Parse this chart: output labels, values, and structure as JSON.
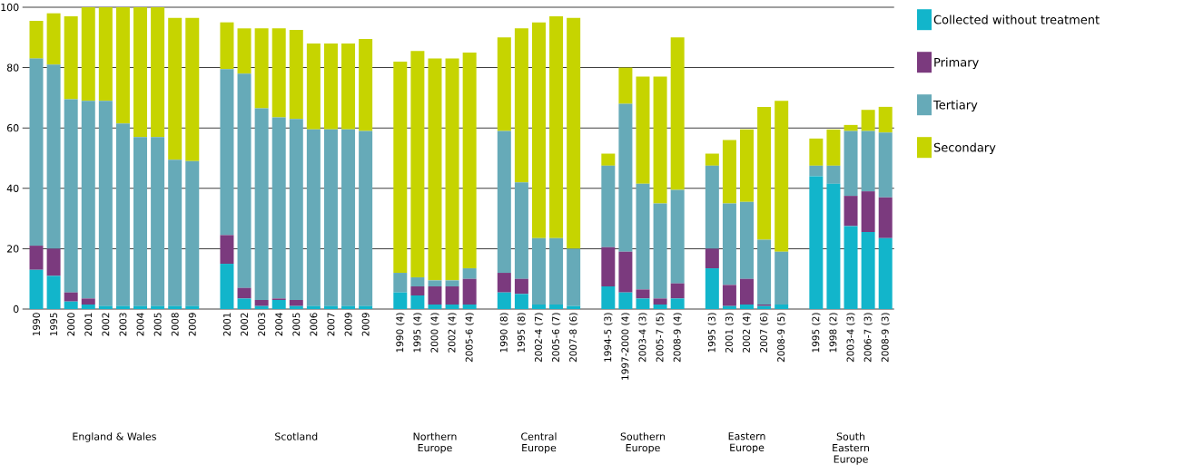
{
  "chart_data": {
    "type": "bar",
    "stacked": true,
    "categories": [
      "1990",
      "1995",
      "2000",
      "2001",
      "2002",
      "2003",
      "2004",
      "2005",
      "2008",
      "2009",
      null,
      "2001",
      "2002",
      "2003",
      "2004",
      "2005",
      "2006",
      "2007",
      "2009",
      "2009",
      null,
      "1990 (4)",
      "1995 (4)",
      "2000 (4)",
      "2002 (4)",
      "2005-6 (4)",
      null,
      "1990 (8)",
      "1995 (8)",
      "2002-4 (7)",
      "2005-6 (7)",
      "2007-8 (6)",
      null,
      "1994-5 (3)",
      "1997-2000 (4)",
      "2003-4 (3)",
      "2005-7 (5)",
      "2008-9 (4)",
      null,
      "1995 (3)",
      "2001 (3)",
      "2002 (4)",
      "2007 (6)",
      "2008-9 (5)",
      null,
      "1995 (2)",
      "1998 (2)",
      "2003-4 (3)",
      "2006-7 (3)",
      "2008-9 (3)"
    ],
    "series": [
      {
        "name": "Collected without treatment",
        "color": "#12b5cb",
        "values": [
          13,
          11,
          2.5,
          1.5,
          1,
          1,
          1,
          1,
          1,
          1,
          null,
          15,
          3.5,
          1,
          3,
          1,
          1,
          1,
          1,
          1,
          null,
          5.5,
          4.5,
          1.5,
          1.5,
          1.5,
          null,
          5.5,
          5,
          1.5,
          1.5,
          1,
          null,
          7.5,
          5.5,
          3.5,
          1.5,
          3.5,
          null,
          13.5,
          1,
          1.5,
          1,
          1.5,
          null,
          44,
          41.5,
          27.5,
          25.5,
          23.5
        ]
      },
      {
        "name": "Primary",
        "color": "#7b3a7e",
        "values": [
          8,
          9,
          3,
          2,
          null,
          null,
          null,
          null,
          null,
          null,
          null,
          9.5,
          3.5,
          2,
          0.5,
          2,
          null,
          null,
          null,
          null,
          null,
          null,
          3,
          6,
          6,
          8.5,
          null,
          6.5,
          5,
          null,
          null,
          null,
          null,
          13,
          13.5,
          3,
          2,
          5,
          null,
          6.5,
          7,
          8.5,
          0.5,
          null,
          null,
          null,
          null,
          10,
          13.5,
          13.5
        ]
      },
      {
        "name": "Tertiary",
        "color": "#66aab8",
        "values": [
          62,
          61,
          64,
          65.5,
          68,
          60.5,
          56,
          56,
          48.5,
          48,
          null,
          55,
          71,
          63.5,
          60,
          60,
          58.5,
          58.5,
          58.5,
          58,
          null,
          6.5,
          3,
          2,
          2,
          3.5,
          null,
          47,
          32,
          22,
          22,
          19,
          null,
          27,
          49,
          35,
          31.5,
          31,
          null,
          27.5,
          27,
          25.5,
          21.5,
          17.5,
          null,
          3.5,
          6,
          21.5,
          20,
          21.5
        ]
      },
      {
        "name": "Secondary",
        "color": "#c6d400",
        "values": [
          12.5,
          17,
          27.5,
          31,
          31,
          38.5,
          43,
          43,
          47,
          47.5,
          null,
          15.5,
          15,
          26.5,
          29.5,
          29.5,
          28.5,
          28.5,
          28.5,
          30.5,
          null,
          70,
          75,
          73.5,
          73.5,
          71.5,
          null,
          31,
          51,
          71.5,
          73.5,
          76.5,
          null,
          4,
          12,
          35.5,
          42,
          50.5,
          null,
          4,
          21,
          24,
          44,
          50,
          null,
          9,
          12,
          2,
          7,
          8.5
        ]
      }
    ],
    "annotations": [
      "England & Wales",
      "Scotland",
      "Northern Europe",
      "Central Europe",
      "Southern Europe",
      "Eastern Europe",
      "South Eastern Europe"
    ],
    "ylim": [
      0,
      100
    ],
    "yticks": [
      0,
      20,
      40,
      60,
      80,
      100
    ],
    "grid": "y",
    "legend": "right"
  }
}
